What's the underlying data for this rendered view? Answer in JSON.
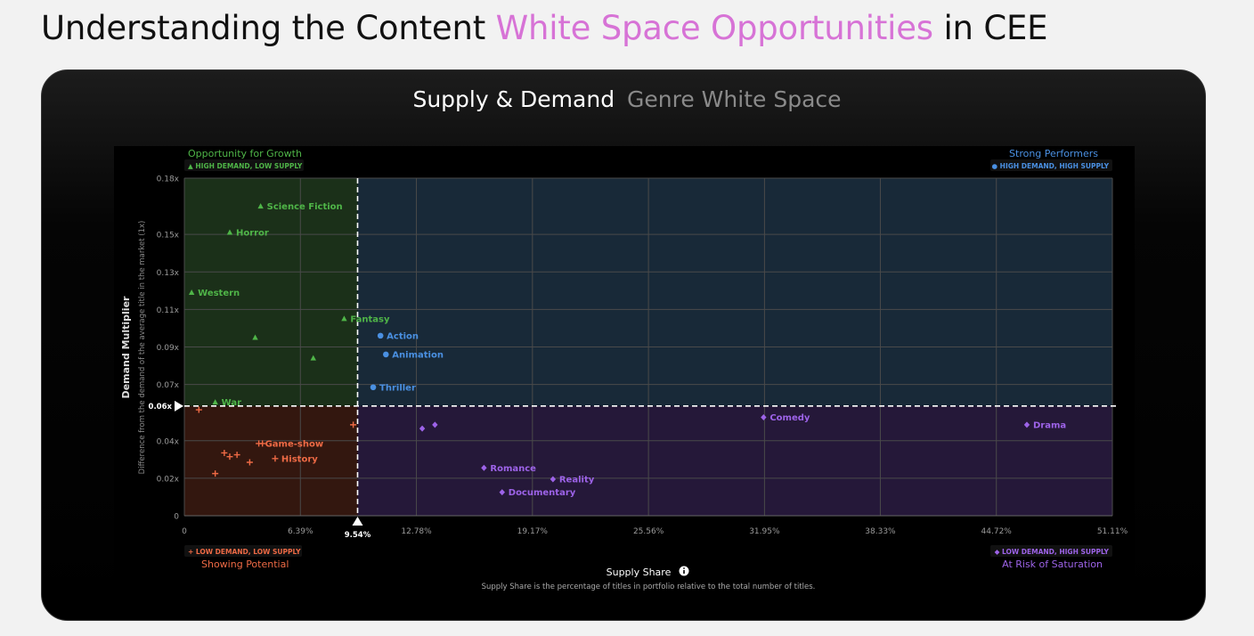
{
  "page": {
    "title_prefix": "Understanding the Content ",
    "title_accent": "White Space Opportunities",
    "title_suffix": " in CEE",
    "accent_color": "#d773d6"
  },
  "card": {
    "title_primary": "Supply & Demand",
    "title_secondary": "Genre White Space"
  },
  "quadrants": {
    "top_left": {
      "title": "Opportunity for Growth",
      "badge": "▲ HIGH DEMAND, LOW SUPPLY",
      "color": "#4fb548"
    },
    "top_right": {
      "title": "Strong Performers",
      "badge": "● HIGH DEMAND, HIGH SUPPLY",
      "color": "#4a90e2"
    },
    "bottom_left": {
      "title": "Showing Potential",
      "badge": "+ LOW DEMAND, LOW SUPPLY",
      "color": "#ee6a45"
    },
    "bottom_right": {
      "title": "At Risk of Saturation",
      "badge": "◆ LOW DEMAND, HIGH SUPPLY",
      "color": "#9d63e8"
    }
  },
  "x_axis": {
    "title": "Supply Share",
    "info_icon": "info-circle-icon",
    "subtitle": "Supply Share is the percentage of titles in portfolio relative to the total number of titles."
  },
  "y_axis": {
    "title": "Demand Multiplier",
    "subtitle": "Difference from the demand of the average title in the market (1x)"
  },
  "chart_data": {
    "type": "scatter",
    "xlim": [
      0,
      51.11
    ],
    "ylim": [
      0,
      0.18
    ],
    "x_ticks": [
      {
        "value": 0,
        "label": "0"
      },
      {
        "value": 6.39,
        "label": "6.39%"
      },
      {
        "value": 12.78,
        "label": "12.78%"
      },
      {
        "value": 19.17,
        "label": "19.17%"
      },
      {
        "value": 25.56,
        "label": "25.56%"
      },
      {
        "value": 31.95,
        "label": "31.95%"
      },
      {
        "value": 38.33,
        "label": "38.33%"
      },
      {
        "value": 44.72,
        "label": "44.72%"
      },
      {
        "value": 51.11,
        "label": "51.11%"
      }
    ],
    "y_ticks": [
      {
        "value": 0,
        "label": "0"
      },
      {
        "value": 0.02,
        "label": "0.02x"
      },
      {
        "value": 0.04,
        "label": "0.04x"
      },
      {
        "value": 0.07,
        "label": "0.07x"
      },
      {
        "value": 0.09,
        "label": "0.09x"
      },
      {
        "value": 0.11,
        "label": "0.11x"
      },
      {
        "value": 0.13,
        "label": "0.13x"
      },
      {
        "value": 0.15,
        "label": "0.15x"
      },
      {
        "value": 0.18,
        "label": "0.18x"
      }
    ],
    "threshold_x": {
      "value": 9.54,
      "label": "9.54%"
    },
    "threshold_y": {
      "value": 0.0585,
      "label": "0.06x"
    },
    "grid": true,
    "series": [
      {
        "quadrant": "top_left",
        "marker": "triangle",
        "color": "#4fb548",
        "points": [
          {
            "x": 4.2,
            "y": 0.165,
            "label": "Science Fiction"
          },
          {
            "x": 2.5,
            "y": 0.151,
            "label": "Horror"
          },
          {
            "x": 0.4,
            "y": 0.119,
            "label": "Western"
          },
          {
            "x": 8.8,
            "y": 0.105,
            "label": "Fantasy"
          },
          {
            "x": 3.9,
            "y": 0.095,
            "label": ""
          },
          {
            "x": 7.1,
            "y": 0.084,
            "label": ""
          },
          {
            "x": 1.7,
            "y": 0.0605,
            "label": "War"
          }
        ]
      },
      {
        "quadrant": "top_right",
        "marker": "circle",
        "color": "#4a90e2",
        "points": [
          {
            "x": 10.8,
            "y": 0.096,
            "label": "Action"
          },
          {
            "x": 11.1,
            "y": 0.086,
            "label": "Animation"
          },
          {
            "x": 10.4,
            "y": 0.0685,
            "label": "Thriller"
          }
        ]
      },
      {
        "quadrant": "bottom_left",
        "marker": "plus",
        "color": "#ee6a45",
        "points": [
          {
            "x": 0.8,
            "y": 0.0565,
            "label": ""
          },
          {
            "x": 9.3,
            "y": 0.0485,
            "label": ""
          },
          {
            "x": 4.1,
            "y": 0.0385,
            "label": "Game-show"
          },
          {
            "x": 4.3,
            "y": 0.0385,
            "label": ""
          },
          {
            "x": 5.0,
            "y": 0.0305,
            "label": "History"
          },
          {
            "x": 2.2,
            "y": 0.0335,
            "label": ""
          },
          {
            "x": 2.9,
            "y": 0.0325,
            "label": ""
          },
          {
            "x": 2.5,
            "y": 0.0315,
            "label": ""
          },
          {
            "x": 3.6,
            "y": 0.0285,
            "label": ""
          },
          {
            "x": 1.7,
            "y": 0.0225,
            "label": ""
          }
        ]
      },
      {
        "quadrant": "bottom_right",
        "marker": "diamond",
        "color": "#9d63e8",
        "points": [
          {
            "x": 31.9,
            "y": 0.0525,
            "label": "Comedy"
          },
          {
            "x": 46.4,
            "y": 0.0485,
            "label": "Drama"
          },
          {
            "x": 13.1,
            "y": 0.0465,
            "label": ""
          },
          {
            "x": 13.8,
            "y": 0.0485,
            "label": ""
          },
          {
            "x": 16.5,
            "y": 0.0255,
            "label": "Romance"
          },
          {
            "x": 20.3,
            "y": 0.0195,
            "label": "Reality"
          },
          {
            "x": 17.5,
            "y": 0.0125,
            "label": "Documentary"
          }
        ]
      }
    ]
  }
}
